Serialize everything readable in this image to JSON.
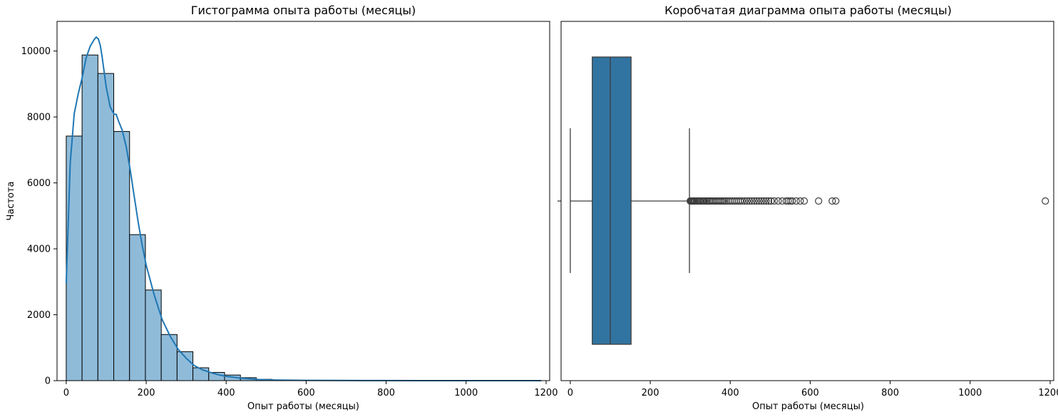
{
  "chart_data": [
    {
      "type": "bar",
      "subtype": "histogram_with_kde",
      "title": "Гистограмма опыта работы (месяцы)",
      "xlabel": "Опыт работы (месяцы)",
      "ylabel": "Частота",
      "xlim": [
        -23,
        1209
      ],
      "ylim": [
        0,
        10900
      ],
      "xticks": [
        0,
        200,
        400,
        600,
        800,
        1000,
        1200
      ],
      "yticks": [
        0,
        2000,
        4000,
        6000,
        8000,
        10000
      ],
      "bin_edges": [
        0,
        39.6,
        79.2,
        118.8,
        158.4,
        198,
        237.6,
        277.2,
        316.8,
        356.4,
        396,
        435.6,
        475.2,
        514.8,
        554.4,
        594,
        633.6,
        673.2,
        712.8,
        752.4,
        792,
        831.6,
        871.2,
        910.8,
        950.4,
        990,
        1029.6,
        1069.2,
        1108.8,
        1148.4,
        1188
      ],
      "counts": [
        7420,
        9880,
        9320,
        7560,
        4430,
        2750,
        1400,
        880,
        390,
        250,
        170,
        90,
        40,
        20,
        10,
        5,
        3,
        2,
        0,
        0,
        0,
        0,
        0,
        0,
        0,
        0,
        0,
        0,
        0,
        1
      ],
      "bar_color": "#8fbbd9",
      "edge_color": "#000000",
      "kde_color": "#1f77b4",
      "kde": {
        "x": [
          0,
          10,
          20,
          30,
          40,
          50,
          60,
          70,
          75,
          80,
          85,
          90,
          100,
          110,
          120,
          125,
          130,
          140,
          150,
          160,
          170,
          180,
          190,
          200,
          220,
          240,
          260,
          280,
          300,
          320,
          340,
          360,
          380,
          400,
          440,
          480,
          520,
          560,
          600,
          700,
          800,
          900,
          1000,
          1100,
          1188
        ],
        "y": [
          2950,
          6600,
          8100,
          8700,
          9200,
          9800,
          10150,
          10350,
          10420,
          10370,
          10180,
          9800,
          8900,
          8300,
          8080,
          8080,
          7900,
          7600,
          7100,
          6400,
          5600,
          4800,
          4100,
          3500,
          2600,
          1850,
          1350,
          950,
          680,
          460,
          330,
          250,
          180,
          130,
          70,
          35,
          20,
          12,
          8,
          4,
          2,
          1,
          1,
          1,
          1
        ]
      }
    },
    {
      "type": "box",
      "title": "Коробчатая диаграмма опыта работы (месяцы)",
      "xlabel": "Опыт работы (месяцы)",
      "xlim": [
        -23,
        1209
      ],
      "xticks": [
        0,
        200,
        400,
        600,
        800,
        1000,
        1200
      ],
      "box_color": "#3274a1",
      "line_color": "#3d3d3d",
      "stats": {
        "whislo": 0,
        "q1": 55,
        "med": 100,
        "q3": 152,
        "whishi": 298
      },
      "fliers": [
        300,
        302,
        304,
        306,
        308,
        310,
        312,
        315,
        318,
        320,
        323,
        326,
        330,
        333,
        336,
        340,
        343,
        347,
        350,
        354,
        358,
        362,
        366,
        370,
        374,
        378,
        382,
        386,
        390,
        395,
        400,
        405,
        410,
        415,
        420,
        425,
        430,
        436,
        442,
        448,
        454,
        460,
        466,
        472,
        478,
        484,
        490,
        496,
        502,
        510,
        520,
        530,
        540,
        545,
        550,
        555,
        565,
        575,
        585,
        621,
        655,
        664,
        1188
      ]
    }
  ]
}
